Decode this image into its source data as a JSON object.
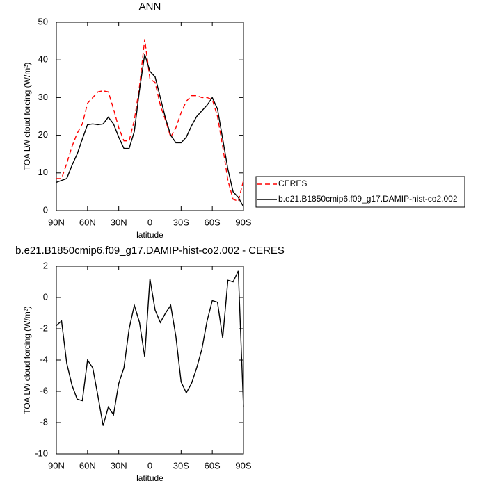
{
  "chart_data": [
    {
      "type": "line",
      "title": "ANN",
      "xlabel": "latitude",
      "ylabel": "TOA LW cloud forcing (W/m²)",
      "xlim": [
        90,
        -90
      ],
      "xticks": [
        {
          "value": 90,
          "label": "90N"
        },
        {
          "value": 60,
          "label": "60N"
        },
        {
          "value": 30,
          "label": "30N"
        },
        0,
        {
          "value": -30,
          "label": "30S"
        },
        {
          "value": -60,
          "label": "60S"
        },
        {
          "value": -90,
          "label": "90S"
        }
      ],
      "ylim": [
        0,
        50
      ],
      "yticks": [
        0,
        10,
        20,
        30,
        40,
        50
      ],
      "legend": "right",
      "x": [
        90,
        85,
        80,
        75,
        70,
        65,
        60,
        55,
        50,
        45,
        40,
        35,
        30,
        25,
        20,
        15,
        10,
        5,
        0,
        -5,
        -10,
        -15,
        -20,
        -25,
        -30,
        -35,
        -40,
        -45,
        -50,
        -55,
        -60,
        -65,
        -70,
        -75,
        -80,
        -85,
        -90
      ],
      "series": [
        {
          "name": "CERES",
          "color": "#ff0000",
          "linestyle": "dashed",
          "values": [
            8.5,
            8.5,
            12.5,
            17,
            20.5,
            23,
            28.5,
            30,
            31.5,
            31.8,
            31.5,
            27,
            22,
            18.5,
            18.5,
            24,
            33,
            45.5,
            35,
            34,
            28,
            24,
            19.5,
            22,
            26,
            29,
            30.5,
            30.5,
            30,
            30,
            29.5,
            25,
            17,
            8,
            3,
            2.5,
            8
          ]
        },
        {
          "name": "b.e21.B1850cmip6.f09_g17.DAMIP-hist-co2.002",
          "color": "#000000",
          "linestyle": "solid",
          "values": [
            7.5,
            8,
            8.5,
            12,
            15,
            19,
            22.8,
            23,
            22.8,
            23,
            24.8,
            23,
            19.5,
            16.5,
            16.5,
            21,
            32,
            41.5,
            37,
            35.5,
            30,
            24.5,
            20,
            18,
            18,
            19.5,
            22.5,
            25,
            26.5,
            28,
            30,
            27,
            19,
            11,
            5,
            3.5,
            1
          ]
        }
      ]
    },
    {
      "type": "line",
      "title": "b.e21.B1850cmip6.f09_g17.DAMIP-hist-co2.002 - CERES",
      "xlabel": "latitude",
      "ylabel": "TOA LW cloud forcing (W/m²)",
      "xlim": [
        90,
        -90
      ],
      "xticks": [
        {
          "value": 90,
          "label": "90N"
        },
        {
          "value": 60,
          "label": "60N"
        },
        {
          "value": 30,
          "label": "30N"
        },
        0,
        {
          "value": -30,
          "label": "30S"
        },
        {
          "value": -60,
          "label": "60S"
        },
        {
          "value": -90,
          "label": "90S"
        }
      ],
      "ylim": [
        -10,
        2
      ],
      "yticks": [
        -10,
        -8,
        -6,
        -4,
        -2,
        0,
        2
      ],
      "x": [
        90,
        85,
        80,
        75,
        70,
        65,
        60,
        55,
        50,
        45,
        40,
        35,
        30,
        25,
        20,
        15,
        10,
        5,
        0,
        -5,
        -10,
        -15,
        -20,
        -25,
        -30,
        -35,
        -40,
        -45,
        -50,
        -55,
        -60,
        -65,
        -70,
        -75,
        -80,
        -85,
        -90
      ],
      "color": "#000000",
      "values": [
        -1.8,
        -1.5,
        -4.2,
        -5.6,
        -6.5,
        -6.6,
        -4,
        -4.5,
        -6.3,
        -8.2,
        -7,
        -7.5,
        -5.5,
        -4.5,
        -2,
        -0.5,
        -1.6,
        -3.8,
        1.2,
        -0.8,
        -1.6,
        -1,
        -0.5,
        -2.5,
        -5.4,
        -6.1,
        -5.5,
        -4.5,
        -3.3,
        -1.5,
        -0.2,
        -0.3,
        -2.6,
        1.1,
        1,
        1.7,
        -7
      ]
    }
  ]
}
